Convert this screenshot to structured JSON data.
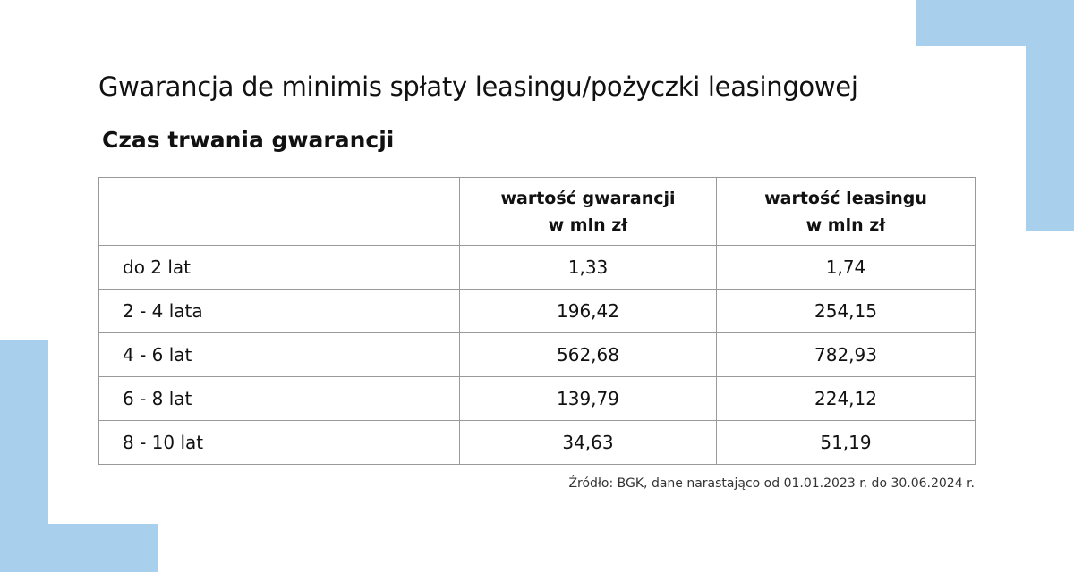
{
  "header": {
    "title": "Gwarancja de minimis spłaty leasingu/pożyczki leasingowej",
    "subtitle": "Czas trwania gwarancji"
  },
  "table": {
    "columns": [
      [
        "wartość gwarancji",
        "w mln zł"
      ],
      [
        "wartość leasingu",
        "w mln zł"
      ]
    ],
    "rows": [
      [
        "do 2 lat",
        "1,33",
        "1,74"
      ],
      [
        "2 - 4 lata",
        "196,42",
        "254,15"
      ],
      [
        "4 - 6 lat",
        "562,68",
        "782,93"
      ],
      [
        "6 - 8 lat",
        "139,79",
        "224,12"
      ],
      [
        "8 - 10 lat",
        "34,63",
        "51,19"
      ]
    ]
  },
  "footer": {
    "source": "Źródło: BGK, dane narastająco od 01.01.2023 r. do 30.06.2024 r."
  }
}
